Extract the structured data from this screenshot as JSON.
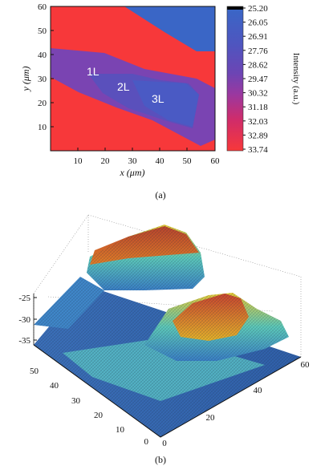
{
  "panel_a": {
    "caption": "(a)",
    "x_label": "x (μm)",
    "y_label": "y (μm)",
    "x_ticks": [
      "10",
      "20",
      "30",
      "40",
      "50",
      "60"
    ],
    "y_ticks": [
      "10",
      "20",
      "30",
      "40",
      "50",
      "60"
    ],
    "region_labels": [
      "1L",
      "2L",
      "3L"
    ],
    "colorbar": {
      "label": "Intensity (a.u.)",
      "ticks": [
        "25.20",
        "26.05",
        "26.91",
        "27.76",
        "28.62",
        "29.47",
        "30.32",
        "31.18",
        "32.03",
        "32.89",
        "33.74"
      ],
      "colors": [
        "#000000",
        "#3f64c4",
        "#4a58c0",
        "#5a4ebc",
        "#6e45b4",
        "#8a3ca6",
        "#a83494",
        "#c82c74",
        "#e02a52",
        "#ef2c3a",
        "#f7383a"
      ]
    }
  },
  "panel_b": {
    "caption": "(b)",
    "z_ticks": [
      "-25",
      "-30",
      "-35"
    ],
    "y_ticks": [
      "50",
      "40",
      "30",
      "20",
      "10",
      "0"
    ],
    "x_ticks": [
      "0",
      "20",
      "40",
      "60"
    ]
  },
  "chart_data": [
    {
      "type": "heatmap",
      "title": "",
      "xlabel": "x (μm)",
      "ylabel": "y (μm)",
      "xlim": [
        0,
        60
      ],
      "ylim": [
        0,
        60
      ],
      "colorbar_label": "Intensity (a.u.)",
      "colorbar_range": [
        25.2,
        33.74
      ],
      "annotations": [
        "1L",
        "2L",
        "3L"
      ],
      "legend": "colorbar at right"
    },
    {
      "type": "area",
      "title": "",
      "xlim": [
        0,
        60
      ],
      "ylim": [
        0,
        55
      ],
      "zlim": [
        -35,
        -25
      ],
      "note": "3D surface plot of same intensity map"
    }
  ]
}
